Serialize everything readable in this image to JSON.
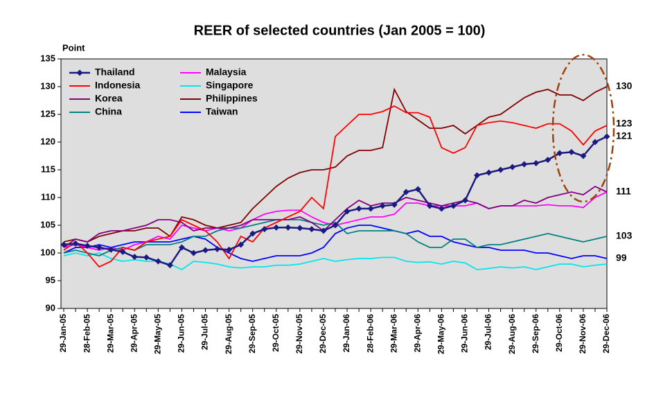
{
  "chart_data": {
    "type": "line",
    "title": "REER of selected countries (Jan 2005 = 100)",
    "y_label": "Point",
    "categories": [
      "29-Jan-05",
      null,
      "28-Feb-05",
      null,
      "29-Mar-05",
      null,
      "29-Apr-05",
      null,
      "29-May-05",
      null,
      "29-Jun-05",
      null,
      "29-Jul-05",
      null,
      "29-Aug-05",
      null,
      "29-Sep-05",
      null,
      "29-Oct-05",
      null,
      "29-Nov-05",
      null,
      "29-Dec-05",
      null,
      "29-Jan-06",
      null,
      "28-Feb-06",
      null,
      "29-Mar-06",
      null,
      "29-Apr-06",
      null,
      "29-May-06",
      null,
      "29-Jun-06",
      null,
      "29-Jul-06",
      null,
      "29-Aug-06",
      null,
      "29-Sep-06",
      null,
      "29-Oct-06",
      null,
      "29-Nov-06",
      null,
      "29-Dec-06"
    ],
    "series": [
      {
        "name": "Thailand",
        "color": "#1a1a80",
        "marker": "diamond",
        "values": [
          101.5,
          101.7,
          101.3,
          101,
          100.6,
          100.2,
          99.3,
          99.2,
          98.5,
          97.8,
          101,
          100,
          100.5,
          100.7,
          100.6,
          101.5,
          103.5,
          104.3,
          104.6,
          104.6,
          104.5,
          104.3,
          104,
          105,
          107.5,
          108,
          108,
          108.5,
          108.7,
          111,
          111.5,
          108.5,
          108,
          108.5,
          109.5,
          114,
          114.5,
          115,
          115.5,
          116,
          116.2,
          116.8,
          118,
          118.2,
          117.5,
          120,
          121
        ]
      },
      {
        "name": "Indonesia",
        "color": "#ff0000",
        "values": [
          100.5,
          102,
          100,
          97.5,
          98.5,
          101,
          100.5,
          102,
          102.5,
          103,
          106,
          105,
          104,
          102,
          99,
          103,
          102,
          104.5,
          105.5,
          106.5,
          107.5,
          110,
          108,
          121,
          123,
          125,
          125,
          125.5,
          126.5,
          125.3,
          125.3,
          124.5,
          119,
          118,
          119,
          123,
          123.5,
          123.8,
          123.5,
          123,
          122.5,
          123.3,
          123.3,
          122,
          119.5,
          122,
          123
        ]
      },
      {
        "name": "Korea",
        "color": "#800080",
        "values": [
          101,
          102.5,
          102,
          103.5,
          104,
          104,
          104.5,
          105,
          106,
          106,
          105.5,
          104,
          104.5,
          104.5,
          104.5,
          105,
          106,
          106,
          106,
          106,
          106.5,
          105.5,
          104,
          106,
          108,
          109.5,
          108.5,
          109,
          109,
          110,
          109.5,
          109,
          108.5,
          109,
          109.5,
          109,
          108,
          108.5,
          108.5,
          109.5,
          109,
          110,
          110.5,
          111,
          110.5,
          112,
          111
        ]
      },
      {
        "name": "China",
        "color": "#008080",
        "values": [
          100,
          100.5,
          100,
          99.5,
          100.5,
          101,
          100.5,
          101.5,
          101.5,
          101.5,
          102,
          103,
          103,
          104,
          104.5,
          104.5,
          105,
          105.5,
          106,
          106,
          106,
          105.5,
          105,
          105.5,
          103.5,
          104,
          104,
          104,
          104,
          103.5,
          102,
          101,
          101,
          102.5,
          102.5,
          101,
          101.5,
          101.5,
          102,
          102.5,
          103,
          103.5,
          103,
          102.5,
          102,
          102.5,
          103
        ]
      },
      {
        "name": "Malaysia",
        "color": "#ff00ff",
        "values": [
          101,
          101.5,
          101,
          100.5,
          101,
          100.5,
          101.5,
          102,
          103,
          102.5,
          105,
          104.5,
          104,
          104.5,
          104,
          104.5,
          106,
          107,
          107.5,
          107.7,
          107.7,
          106.5,
          105.5,
          105,
          105.5,
          106,
          106.5,
          106.5,
          107,
          109,
          109,
          108.5,
          108.5,
          108.5,
          108.5,
          109,
          108,
          108.5,
          108.5,
          108.5,
          108.5,
          108.7,
          108.5,
          108.5,
          108.2,
          110,
          111
        ]
      },
      {
        "name": "Singapore",
        "color": "#00e5ee",
        "values": [
          99.5,
          100,
          99.5,
          100,
          99,
          98.5,
          98.8,
          98.5,
          98.5,
          98,
          97,
          98.5,
          98.3,
          98,
          97.5,
          97.3,
          97.5,
          97.5,
          97.8,
          97.8,
          98,
          98.5,
          99,
          98.5,
          98.8,
          99,
          99,
          99.2,
          99.2,
          98.5,
          98.3,
          98.4,
          98,
          98.5,
          98.2,
          97,
          97.2,
          97.5,
          97.3,
          97.5,
          97,
          97.5,
          98,
          98,
          97.5,
          97.8,
          98
        ]
      },
      {
        "name": "Philippines",
        "color": "#800000",
        "values": [
          102,
          102.5,
          102,
          103,
          103.5,
          104,
          104,
          104.5,
          104.5,
          103,
          106.5,
          106,
          105,
          104.5,
          105,
          105.5,
          108,
          110,
          112,
          113.5,
          114.5,
          115,
          115,
          115.5,
          117.5,
          118.5,
          118.5,
          119,
          129.5,
          125.5,
          124,
          122.5,
          122.5,
          123,
          121.5,
          123,
          124.5,
          125,
          126.5,
          128,
          129,
          129.5,
          128.5,
          128.5,
          127.5,
          129,
          130
        ]
      },
      {
        "name": "Taiwan",
        "color": "#0000ff",
        "values": [
          100,
          101,
          101,
          101.5,
          101,
          101.5,
          102,
          102,
          102,
          102,
          102.5,
          103,
          102.5,
          101,
          100,
          99,
          98.5,
          99,
          99.5,
          99.5,
          99.5,
          100,
          101,
          103.5,
          104.5,
          105,
          105,
          104.5,
          104,
          103.5,
          104,
          103,
          103,
          102,
          101.5,
          101,
          101,
          100.5,
          100.5,
          100.5,
          100,
          100,
          99.5,
          99,
          99.5,
          99.5,
          99
        ]
      }
    ],
    "ylim": [
      90,
      135
    ],
    "yticks": [
      90,
      95,
      100,
      105,
      110,
      115,
      120,
      125,
      130,
      135
    ],
    "annotations": [
      {
        "label": "130",
        "value": 130
      },
      {
        "label": "123",
        "value": 123.3
      },
      {
        "label": "121",
        "value": 121
      },
      {
        "label": "111",
        "value": 111
      },
      {
        "label": "103",
        "value": 103
      },
      {
        "label": "99",
        "value": 99
      }
    ],
    "legend": "upper left"
  }
}
